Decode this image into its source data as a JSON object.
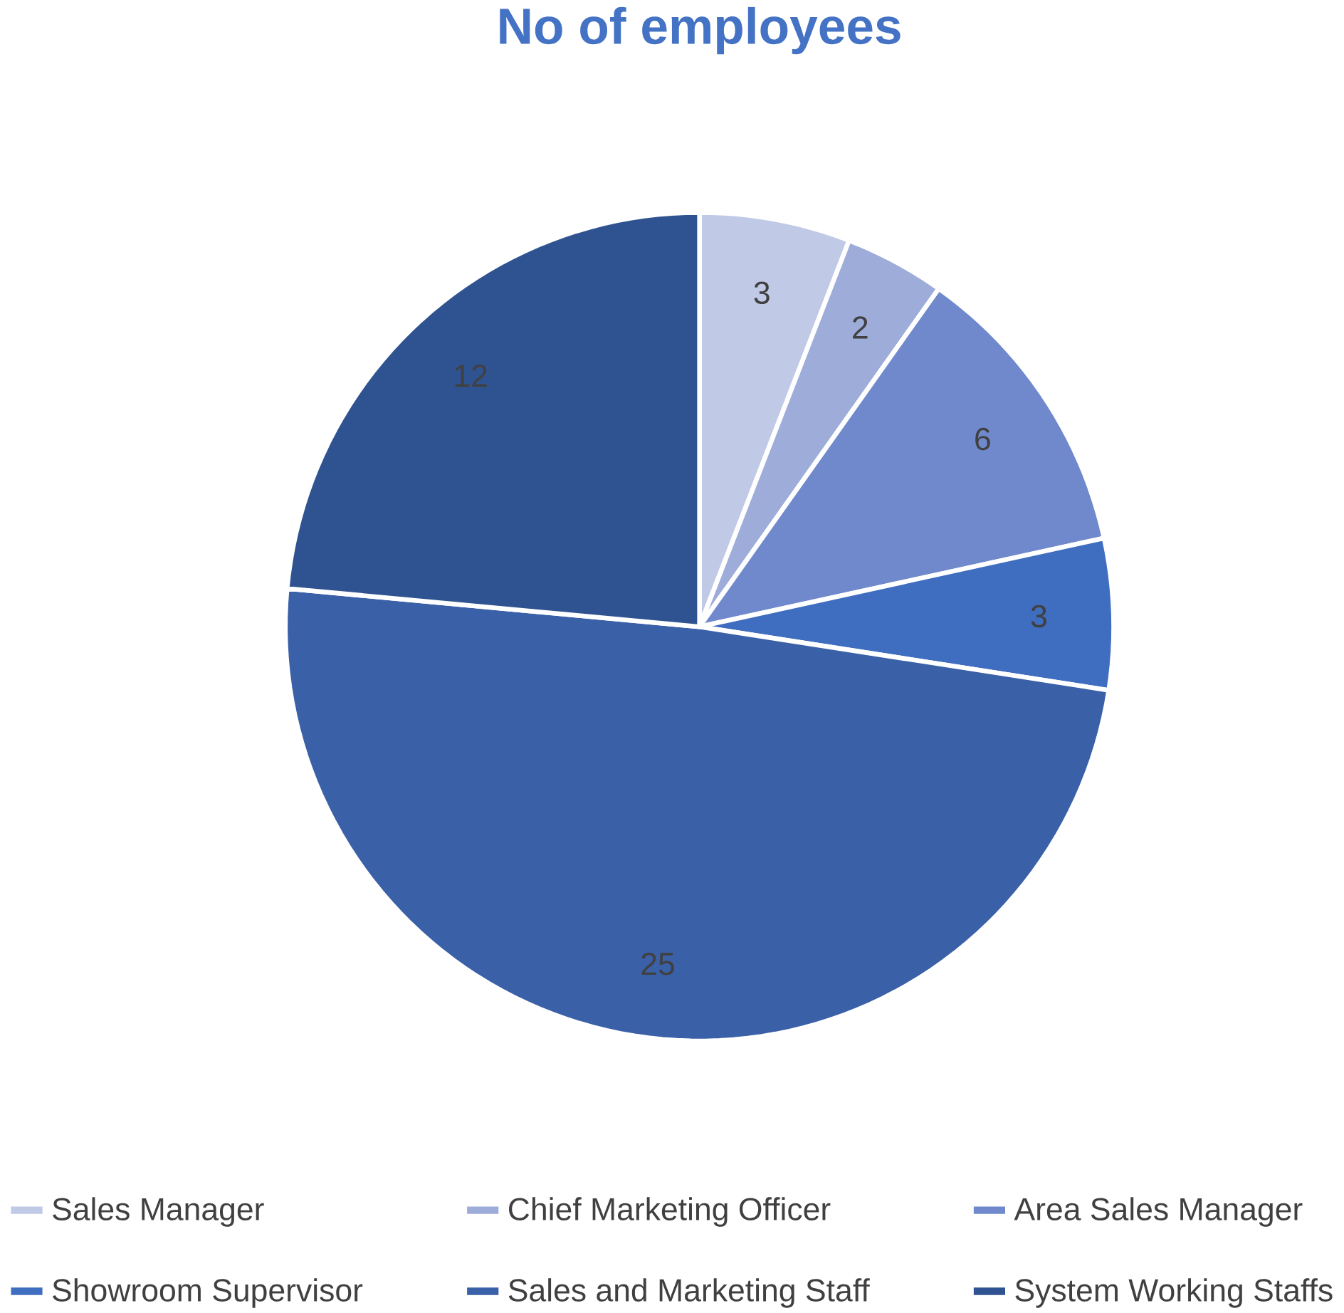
{
  "chart_data": {
    "type": "pie",
    "title": "No of employees",
    "categories": [
      "Sales Manager",
      "Chief Marketing Officer",
      "Area Sales Manager",
      "Showroom Supervisor",
      "Sales and Marketing Staff",
      "System Working Staffs"
    ],
    "values": [
      3,
      2,
      6,
      3,
      25,
      12
    ],
    "colors": [
      "#c0c9e5",
      "#9dacd9",
      "#6f89cc",
      "#3f6dbf",
      "#3a60a8",
      "#2f5391"
    ],
    "data_labels": true,
    "legend": "bottom"
  }
}
